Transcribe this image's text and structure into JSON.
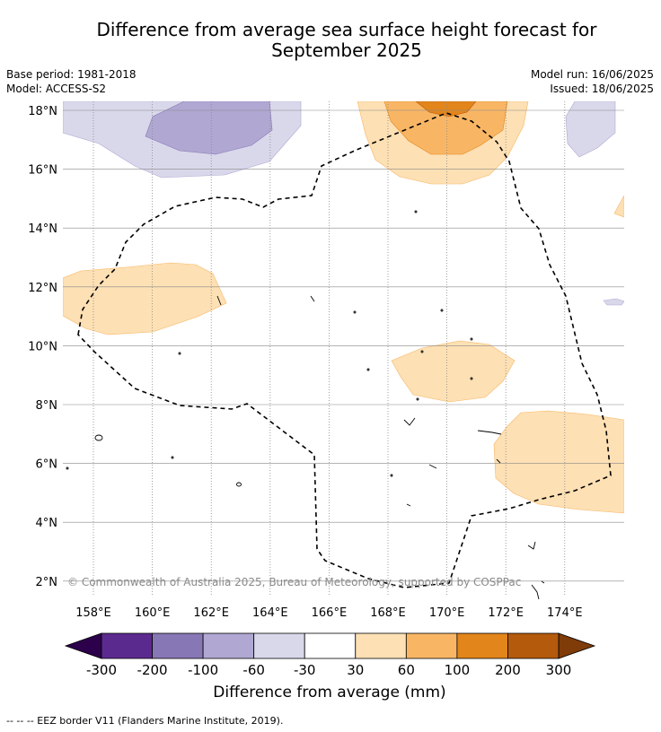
{
  "title": {
    "line1": "Difference from average sea surface height forecast for",
    "line2": "September 2025"
  },
  "meta": {
    "base_period": "Base period: 1981-2018",
    "model": "Model: ACCESS-S2",
    "model_run": "Model run: 16/06/2025",
    "issued": "Issued: 18/06/2025"
  },
  "map": {
    "lon_ticks": [
      "158°E",
      "160°E",
      "162°E",
      "164°E",
      "166°E",
      "168°E",
      "170°E",
      "172°E",
      "174°E"
    ],
    "lat_ticks": [
      "18°N",
      "16°N",
      "14°N",
      "12°N",
      "10°N",
      "8°N",
      "6°N",
      "4°N",
      "2°N"
    ],
    "lon_range": [
      157,
      176
    ],
    "lat_range": [
      1.5,
      18.3
    ],
    "copyright": "© Commonwealth of Australia 2025, Bureau of Meteorology, supported by COSPPac",
    "eez_line_style": "dashed",
    "grid": "dotted"
  },
  "colorbar": {
    "labels": [
      "-300",
      "-200",
      "-100",
      "-60",
      "-30",
      "30",
      "60",
      "100",
      "200",
      "300"
    ],
    "colors": [
      "#5b2a8e",
      "#8877b5",
      "#b0a8d2",
      "#d9d8eb",
      "#ffffff",
      "#fde0b4",
      "#f8b665",
      "#e2851b",
      "#b45a0c"
    ],
    "under_color": "#2d004b",
    "over_color": "#7f3b08",
    "title": "Difference from average (mm)"
  },
  "footnote": "--  --  -- EEZ border V11 (Flanders Marine Institute, 2019)."
}
